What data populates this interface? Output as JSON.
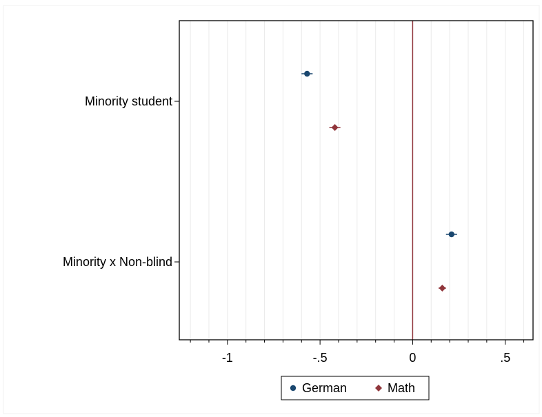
{
  "chart_data": {
    "type": "scatter",
    "orientation": "horizontal",
    "title": "",
    "xlabel": "",
    "ylabel": "",
    "categories": [
      "Minority student",
      "Minority x Non-blind"
    ],
    "series": [
      {
        "name": "German",
        "color": "#1a476f",
        "marker": "circle",
        "points": [
          {
            "category": "Minority student",
            "value": -0.57,
            "ci": [
              -0.6,
              -0.54
            ]
          },
          {
            "category": "Minority x Non-blind",
            "value": 0.21,
            "ci": [
              0.18,
              0.24
            ]
          }
        ]
      },
      {
        "name": "Math",
        "color": "#90353b",
        "marker": "diamond",
        "points": [
          {
            "category": "Minority student",
            "value": -0.42,
            "ci": [
              -0.45,
              -0.39
            ]
          },
          {
            "category": "Minority x Non-blind",
            "value": 0.16,
            "ci": [
              0.14,
              0.18
            ]
          }
        ]
      }
    ],
    "x_ticks": [
      {
        "value": -1,
        "label": "-1"
      },
      {
        "value": -0.5,
        "label": "-.5"
      },
      {
        "value": 0,
        "label": "0"
      },
      {
        "value": 0.5,
        "label": ".5"
      }
    ],
    "x_minor_ticks": [
      -1.2,
      -1.1,
      -0.9,
      -0.8,
      -0.7,
      -0.6,
      -0.4,
      -0.3,
      -0.2,
      -0.1,
      0.1,
      0.2,
      0.3,
      0.4,
      0.6
    ],
    "xlim": [
      -1.26,
      0.65
    ],
    "reference_line": {
      "value": 0,
      "color": "#90353b"
    },
    "grid": true,
    "legend_position": "bottom-center"
  }
}
